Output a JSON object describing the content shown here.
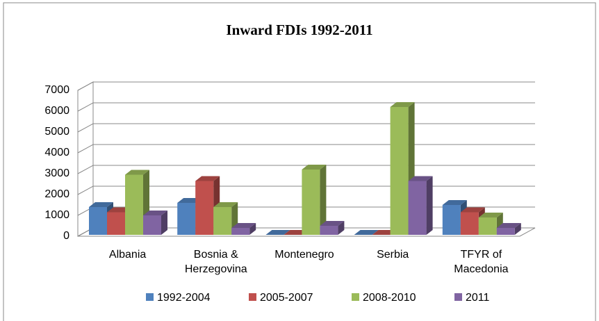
{
  "chart_data": {
    "type": "bar3d",
    "title": "Inward FDIs 1992-2011",
    "categories": [
      "Albania",
      "Bosnia & Herzegovina",
      "Montenegro",
      "Serbia",
      "TFYR of Macedonia"
    ],
    "series": [
      {
        "name": "1992-2004",
        "color": "#4f81bd",
        "values": [
          1400,
          1600,
          0,
          0,
          1500
        ]
      },
      {
        "name": "2005-2007",
        "color": "#c0504d",
        "values": [
          1150,
          2650,
          0,
          0,
          1150
        ]
      },
      {
        "name": "2008-2010",
        "color": "#9bbb59",
        "values": [
          2950,
          1400,
          3200,
          6200,
          900
        ]
      },
      {
        "name": "2011",
        "color": "#8064a2",
        "values": [
          1000,
          400,
          500,
          2650,
          400
        ]
      }
    ],
    "ylim": [
      0,
      7000
    ],
    "yticks": [
      0,
      1000,
      2000,
      3000,
      4000,
      5000,
      6000,
      7000
    ],
    "grid": true,
    "legend": "bottom"
  }
}
